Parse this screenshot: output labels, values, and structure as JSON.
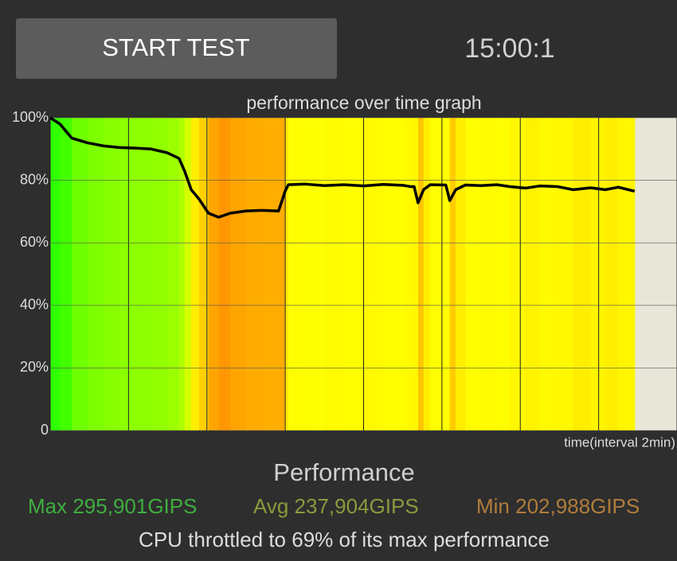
{
  "button": {
    "label": "START TEST"
  },
  "timer": "15:00:1",
  "chart_data": {
    "type": "line",
    "title": "performance over time graph",
    "x_label": "time(interval 2min)",
    "x": [
      0,
      0.25,
      0.55,
      0.95,
      1.36,
      1.77,
      2.17,
      2.58,
      2.99,
      3.29,
      3.43,
      3.6,
      3.8,
      4.04,
      4.3,
      4.6,
      5.0,
      5.4,
      5.83,
      6.0,
      6.08,
      6.5,
      7.0,
      7.5,
      8.0,
      8.5,
      9.0,
      9.19,
      9.29,
      9.39,
      9.53,
      9.7,
      10.1,
      10.2,
      10.35,
      10.6,
      11.0,
      11.4,
      11.73,
      12.13,
      12.5,
      12.94,
      13.35,
      13.8,
      14.17,
      14.5,
      14.92
    ],
    "series": [
      {
        "color": "#000000",
        "values": [
          100,
          98,
          93.5,
          92,
          91,
          90.5,
          90.3,
          90,
          88.8,
          87,
          83,
          77,
          74,
          69.5,
          68.2,
          69.5,
          70.2,
          70.4,
          70.2,
          76.6,
          78.6,
          78.8,
          78.3,
          78.6,
          78.2,
          78.7,
          78.4,
          78,
          78,
          72.8,
          77,
          78.6,
          78.5,
          73.5,
          77,
          78.5,
          78.3,
          78.6,
          78,
          77.5,
          78.2,
          78,
          77,
          77.6,
          77,
          77.8,
          76.5
        ]
      }
    ],
    "xlim": [
      0,
      16
    ],
    "xticks": [
      0,
      2,
      4,
      6,
      8,
      10,
      12,
      14,
      16
    ],
    "ylim": [
      0,
      100
    ],
    "yticks": [
      0,
      {
        "value": 20,
        "label": "20%"
      },
      {
        "value": 40,
        "label": "40%"
      },
      {
        "value": 60,
        "label": "60%"
      },
      {
        "value": 80,
        "label": "80%"
      },
      {
        "value": 100,
        "label": "100%"
      }
    ],
    "grid": true
  },
  "summary": {
    "heading": "Performance",
    "max": "Max 295,901GIPS",
    "avg": "Avg 237,904GIPS",
    "min": "Min 202,988GIPS",
    "message": "CPU throttled to 69% of its max performance"
  }
}
